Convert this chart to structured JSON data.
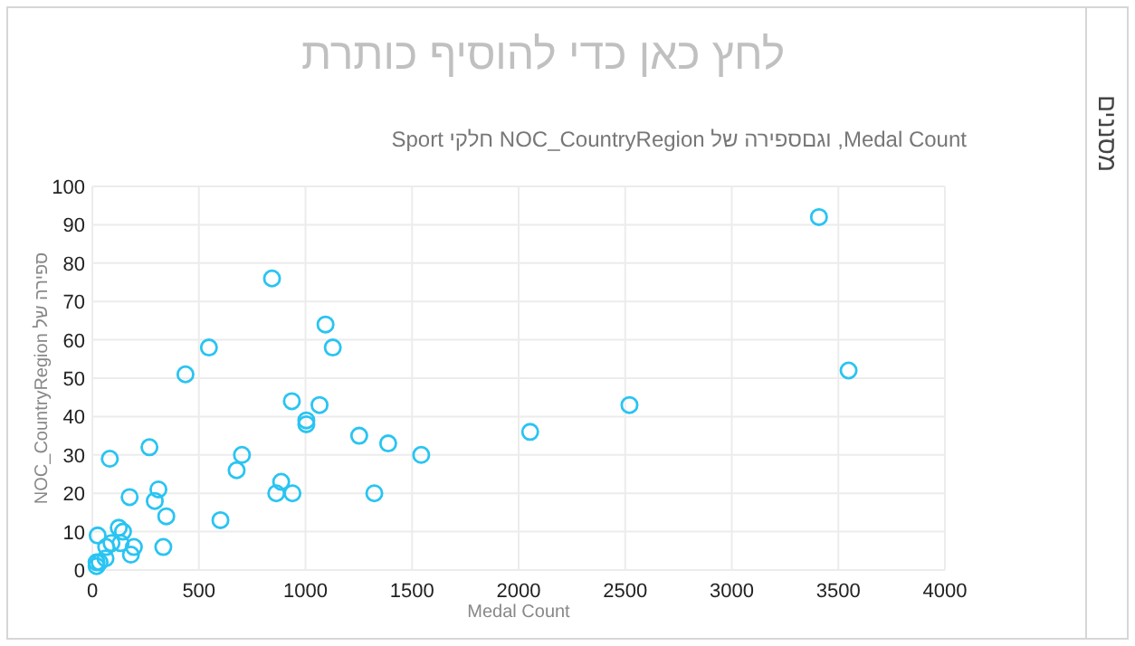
{
  "chart_data": {
    "type": "scatter",
    "title": "לחץ כאן כדי להוסיף כותרת",
    "subtitle": "Medal Count, וגםספירה של NOC_CountryRegion חלקי Sport",
    "xlabel": "Medal Count",
    "ylabel": "ספירה של NOC_CountryRegion",
    "annotations": [
      "מסננים"
    ],
    "x": [
      843,
      1094,
      1128,
      547,
      437,
      936,
      1066,
      1004,
      1004,
      1252,
      1388,
      1543,
      2054,
      1323,
      939,
      863,
      886,
      702,
      677,
      601,
      347,
      333,
      310,
      293,
      268,
      82,
      175,
      25,
      124,
      144,
      195,
      181,
      133,
      90,
      65,
      62,
      20,
      34,
      20,
      3409,
      3548,
      2520
    ],
    "series": [
      {
        "color": "#29c4f2",
        "values": [
          76,
          64,
          58,
          58,
          51,
          44,
          43,
          39,
          38,
          35,
          33,
          30,
          36,
          20,
          20,
          20,
          23,
          30,
          26,
          13,
          14,
          6,
          21,
          18,
          32,
          29,
          19,
          9,
          11,
          10,
          6,
          4,
          7,
          7,
          6,
          3,
          2,
          2,
          1,
          92,
          52,
          43
        ]
      }
    ],
    "xlim": [
      0,
      4000
    ],
    "ylim": [
      0,
      100
    ],
    "xticks": [
      0,
      500,
      1000,
      1500,
      2000,
      2500,
      3000,
      3500,
      4000
    ],
    "yticks": [
      0,
      10,
      20,
      30,
      40,
      50,
      60,
      70,
      80,
      90,
      100
    ],
    "grid": true,
    "marker": "circle"
  }
}
